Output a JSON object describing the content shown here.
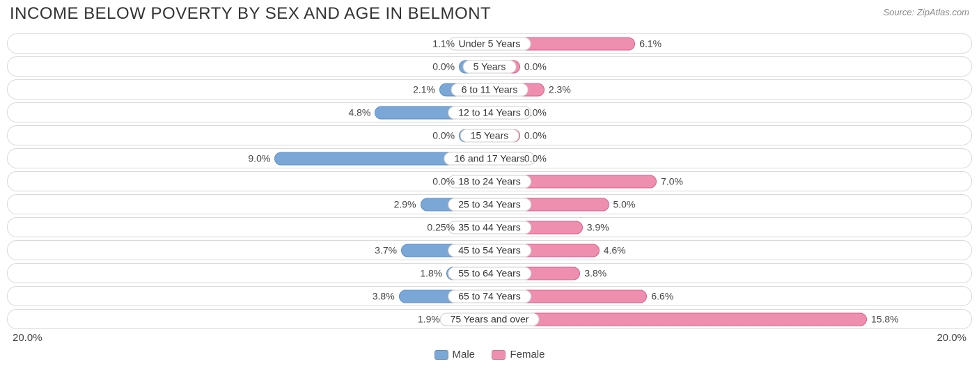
{
  "title": "INCOME BELOW POVERTY BY SEX AND AGE IN BELMONT",
  "source": "Source: ZipAtlas.com",
  "chart": {
    "type": "diverging-bar",
    "axis_max": 20.0,
    "axis_label_left": "20.0%",
    "axis_label_right": "20.0%",
    "male_color": "#7ba7d7",
    "male_border": "#5a8fce",
    "female_color": "#ee8fb0",
    "female_border": "#e05a8a",
    "row_border_color": "#d9d9d9",
    "background_color": "#ffffff",
    "label_fontsize": 14,
    "title_fontsize": 24,
    "min_bar_pct": 3.2,
    "legend": [
      {
        "label": "Male",
        "color": "#7ba7d7"
      },
      {
        "label": "Female",
        "color": "#ee8fb0"
      }
    ],
    "rows": [
      {
        "label": "Under 5 Years",
        "male": 1.1,
        "female": 6.1,
        "male_txt": "1.1%",
        "female_txt": "6.1%"
      },
      {
        "label": "5 Years",
        "male": 0.0,
        "female": 0.0,
        "male_txt": "0.0%",
        "female_txt": "0.0%"
      },
      {
        "label": "6 to 11 Years",
        "male": 2.1,
        "female": 2.3,
        "male_txt": "2.1%",
        "female_txt": "2.3%"
      },
      {
        "label": "12 to 14 Years",
        "male": 4.8,
        "female": 0.0,
        "male_txt": "4.8%",
        "female_txt": "0.0%"
      },
      {
        "label": "15 Years",
        "male": 0.0,
        "female": 0.0,
        "male_txt": "0.0%",
        "female_txt": "0.0%"
      },
      {
        "label": "16 and 17 Years",
        "male": 9.0,
        "female": 0.0,
        "male_txt": "9.0%",
        "female_txt": "0.0%"
      },
      {
        "label": "18 to 24 Years",
        "male": 0.0,
        "female": 7.0,
        "male_txt": "0.0%",
        "female_txt": "7.0%"
      },
      {
        "label": "25 to 34 Years",
        "male": 2.9,
        "female": 5.0,
        "male_txt": "2.9%",
        "female_txt": "5.0%"
      },
      {
        "label": "35 to 44 Years",
        "male": 0.25,
        "female": 3.9,
        "male_txt": "0.25%",
        "female_txt": "3.9%"
      },
      {
        "label": "45 to 54 Years",
        "male": 3.7,
        "female": 4.6,
        "male_txt": "3.7%",
        "female_txt": "4.6%"
      },
      {
        "label": "55 to 64 Years",
        "male": 1.8,
        "female": 3.8,
        "male_txt": "1.8%",
        "female_txt": "3.8%"
      },
      {
        "label": "65 to 74 Years",
        "male": 3.8,
        "female": 6.6,
        "male_txt": "3.8%",
        "female_txt": "6.6%"
      },
      {
        "label": "75 Years and over",
        "male": 1.9,
        "female": 15.8,
        "male_txt": "1.9%",
        "female_txt": "15.8%"
      }
    ]
  }
}
